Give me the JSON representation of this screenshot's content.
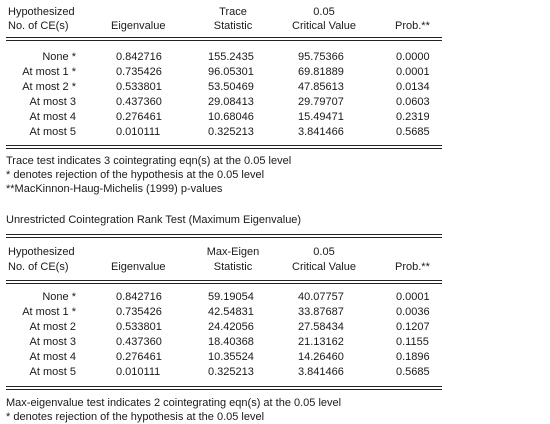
{
  "trace_table": {
    "headers": {
      "hypothesized_1": "Hypothesized",
      "hypothesized_2": "No. of CE(s)",
      "eigenvalue": "Eigenvalue",
      "stat_1": "Trace",
      "stat_2": "Statistic",
      "cv_1": "0.05",
      "cv_2": "Critical Value",
      "prob": "Prob.**"
    },
    "rows": [
      {
        "hyp": "None *",
        "eig": "0.842716",
        "stat": "155.2435",
        "cv": "95.75366",
        "prob": "0.0000"
      },
      {
        "hyp": "At most 1 *",
        "eig": "0.735426",
        "stat": "96.05301",
        "cv": "69.81889",
        "prob": "0.0001"
      },
      {
        "hyp": "At most 2 *",
        "eig": "0.533801",
        "stat": "53.50469",
        "cv": "47.85613",
        "prob": "0.0134"
      },
      {
        "hyp": "At most 3",
        "eig": "0.437360",
        "stat": "29.08413",
        "cv": "29.79707",
        "prob": "0.0603"
      },
      {
        "hyp": "At most 4",
        "eig": "0.276461",
        "stat": "10.68046",
        "cv": "15.49471",
        "prob": "0.2319"
      },
      {
        "hyp": "At most 5",
        "eig": "0.010111",
        "stat": "0.325213",
        "cv": "3.841466",
        "prob": "0.5685"
      }
    ],
    "notes": [
      "Trace test indicates 3 cointegrating eqn(s) at the 0.05 level",
      " * denotes rejection of the hypothesis at the 0.05 level",
      " **MacKinnon-Haug-Michelis (1999) p-values"
    ]
  },
  "max_eigen_title": "Unrestricted Cointegration Rank Test (Maximum Eigenvalue)",
  "max_table": {
    "headers": {
      "hypothesized_1": "Hypothesized",
      "hypothesized_2": "No. of CE(s)",
      "eigenvalue": "Eigenvalue",
      "stat_1": "Max-Eigen",
      "stat_2": "Statistic",
      "cv_1": "0.05",
      "cv_2": "Critical Value",
      "prob": "Prob.**"
    },
    "rows": [
      {
        "hyp": "None *",
        "eig": "0.842716",
        "stat": "59.19054",
        "cv": "40.07757",
        "prob": "0.0001"
      },
      {
        "hyp": "At most 1 *",
        "eig": "0.735426",
        "stat": "42.54831",
        "cv": "33.87687",
        "prob": "0.0036"
      },
      {
        "hyp": "At most 2",
        "eig": "0.533801",
        "stat": "24.42056",
        "cv": "27.58434",
        "prob": "0.1207"
      },
      {
        "hyp": "At most 3",
        "eig": "0.437360",
        "stat": "18.40368",
        "cv": "21.13162",
        "prob": "0.1155"
      },
      {
        "hyp": "At most 4",
        "eig": "0.276461",
        "stat": "10.35524",
        "cv": "14.26460",
        "prob": "0.1896"
      },
      {
        "hyp": "At most 5",
        "eig": "0.010111",
        "stat": "0.325213",
        "cv": "3.841466",
        "prob": "0.5685"
      }
    ],
    "notes": [
      "Max-eigenvalue test indicates 2 cointegrating eqn(s) at the 0.05 level",
      " * denotes rejection of the hypothesis at the 0.05 level"
    ]
  }
}
